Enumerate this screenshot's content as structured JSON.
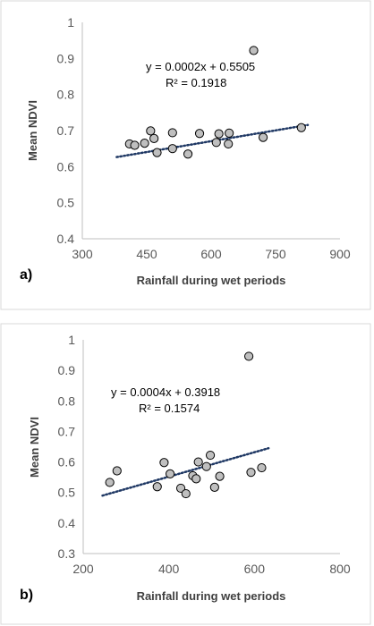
{
  "chart_data": [
    {
      "type": "scatter",
      "panel_label": "a)",
      "xlabel": "Rainfall during wet periods",
      "ylabel": "Mean NDVI",
      "xlim": [
        300,
        900
      ],
      "ylim": [
        0.4,
        1
      ],
      "x_ticks": [
        "300",
        "450",
        "600",
        "750",
        "900"
      ],
      "y_ticks": [
        "0.4",
        "0.5",
        "0.6",
        "0.7",
        "0.8",
        "0.9",
        "1"
      ],
      "points": [
        {
          "x": 410,
          "y": 0.663
        },
        {
          "x": 422,
          "y": 0.659
        },
        {
          "x": 445,
          "y": 0.665
        },
        {
          "x": 459,
          "y": 0.699
        },
        {
          "x": 467,
          "y": 0.678
        },
        {
          "x": 474,
          "y": 0.639
        },
        {
          "x": 510,
          "y": 0.694
        },
        {
          "x": 510,
          "y": 0.65
        },
        {
          "x": 546,
          "y": 0.635
        },
        {
          "x": 573,
          "y": 0.692
        },
        {
          "x": 612,
          "y": 0.667
        },
        {
          "x": 618,
          "y": 0.691
        },
        {
          "x": 640,
          "y": 0.663
        },
        {
          "x": 642,
          "y": 0.693
        },
        {
          "x": 699,
          "y": 0.922
        },
        {
          "x": 721,
          "y": 0.681
        },
        {
          "x": 810,
          "y": 0.708
        }
      ],
      "trendline": {
        "equation": "y = 0.0002x + 0.5505",
        "r2": "R² = 0.1918",
        "slope": 0.0002,
        "intercept": 0.5505,
        "x_range": [
          380,
          825
        ]
      },
      "grid": false,
      "marker_color": "#bfbfbf"
    },
    {
      "type": "scatter",
      "panel_label": "b)",
      "xlabel": "Rainfall during wet periods",
      "ylabel": "Mean NDVI",
      "xlim": [
        200,
        800
      ],
      "ylim": [
        0.3,
        1
      ],
      "x_ticks": [
        "200",
        "400",
        "600",
        "800"
      ],
      "y_ticks": [
        "0.3",
        "0.4",
        "0.5",
        "0.6",
        "0.7",
        "0.8",
        "0.9",
        "1"
      ],
      "points": [
        {
          "x": 262,
          "y": 0.533
        },
        {
          "x": 279,
          "y": 0.571
        },
        {
          "x": 373,
          "y": 0.519
        },
        {
          "x": 389,
          "y": 0.598
        },
        {
          "x": 403,
          "y": 0.561
        },
        {
          "x": 428,
          "y": 0.514
        },
        {
          "x": 440,
          "y": 0.496
        },
        {
          "x": 456,
          "y": 0.555
        },
        {
          "x": 464,
          "y": 0.545
        },
        {
          "x": 469,
          "y": 0.6
        },
        {
          "x": 488,
          "y": 0.585
        },
        {
          "x": 497,
          "y": 0.622
        },
        {
          "x": 507,
          "y": 0.517
        },
        {
          "x": 519,
          "y": 0.553
        },
        {
          "x": 587,
          "y": 0.946
        },
        {
          "x": 592,
          "y": 0.566
        },
        {
          "x": 617,
          "y": 0.581
        }
      ],
      "trendline": {
        "equation": "y = 0.0004x + 0.3918",
        "r2": "R² = 0.1574",
        "slope": 0.0004,
        "intercept": 0.3918,
        "x_range": [
          245,
          633
        ]
      },
      "grid": false,
      "marker_color": "#bfbfbf"
    }
  ]
}
